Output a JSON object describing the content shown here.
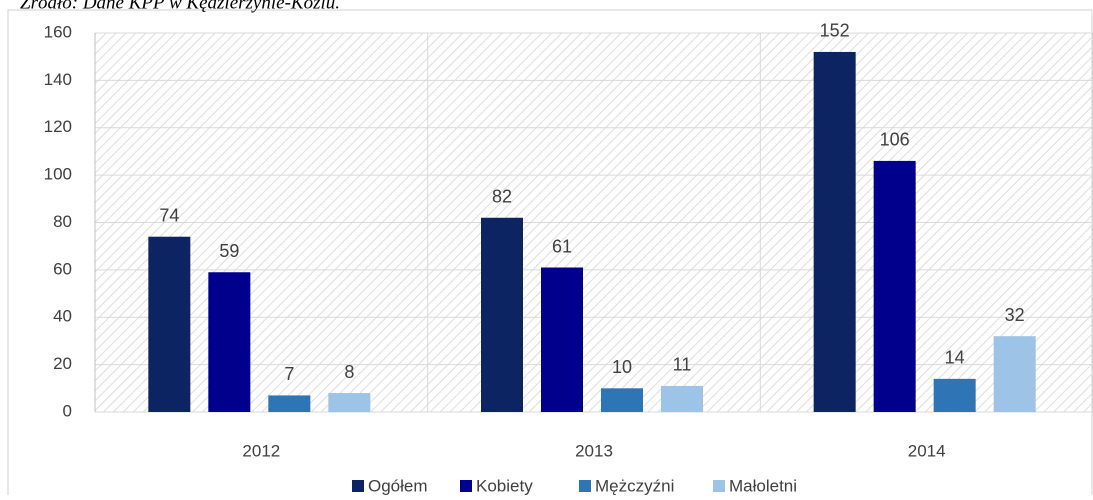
{
  "chart_data": {
    "type": "bar",
    "title": "Źródło: Dane KPP w Kędzierzynie-Koźlu.",
    "categories": [
      "2012",
      "2013",
      "2014"
    ],
    "series": [
      {
        "name": "Ogółem",
        "color": "#0c2461",
        "values": [
          74,
          82,
          152
        ]
      },
      {
        "name": "Kobiety",
        "color": "#00008c",
        "values": [
          59,
          61,
          106
        ]
      },
      {
        "name": "Mężczyźni",
        "color": "#2e75b6",
        "values": [
          7,
          10,
          14
        ]
      },
      {
        "name": "Małoletni",
        "color": "#9dc3e6",
        "values": [
          8,
          11,
          32
        ]
      }
    ],
    "ylim": [
      0,
      160
    ],
    "yticks": [
      0,
      20,
      40,
      60,
      80,
      100,
      120,
      140,
      160
    ],
    "grid": true,
    "legend": "bottom"
  }
}
